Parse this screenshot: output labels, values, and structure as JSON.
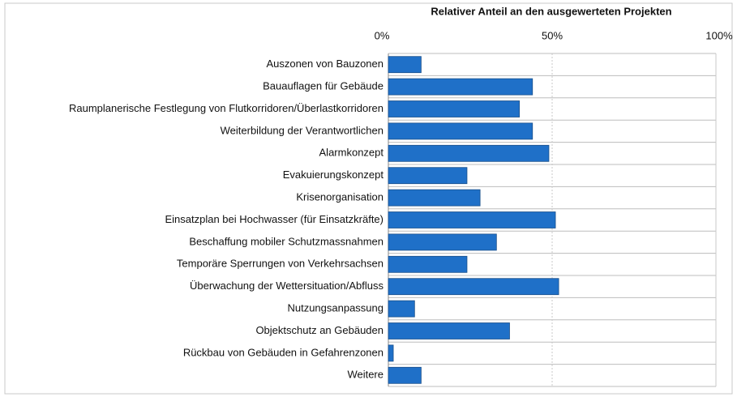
{
  "chart_data": {
    "type": "bar",
    "orientation": "horizontal",
    "x_label": "Relativer Anteil an den ausgewerteten Projekten",
    "categories": [
      "Auszonen von Bauzonen",
      "Bauauflagen für Gebäude",
      "Raumplanerische Festlegung von Flutkorridoren/Überlastkorridoren",
      "Weiterbildung der Verantwortlichen",
      "Alarmkonzept",
      "Evakuierungskonzept",
      "Krisenorganisation",
      "Einsatzplan bei Hochwasser (für Einsatzkräfte)",
      "Beschaffung mobiler Schutzmassnahmen",
      "Temporäre Sperrungen von Verkehrsachsen",
      "Überwachung der Wettersituation/Abfluss",
      "Nutzungsanpassung",
      "Objektschutz an Gebäuden",
      "Rückbau von Gebäuden in Gefahrenzonen",
      "Weitere"
    ],
    "values": [
      10,
      44,
      40,
      44,
      49,
      24,
      28,
      51,
      33,
      24,
      52,
      8,
      37,
      1.5,
      10
    ],
    "color": "#1f70c8",
    "xlim": [
      0,
      100
    ],
    "xticks": [
      {
        "value": 0,
        "label": "0%"
      },
      {
        "value": 50,
        "label": "50%"
      },
      {
        "value": 100,
        "label": "100%"
      }
    ],
    "grid": true
  }
}
